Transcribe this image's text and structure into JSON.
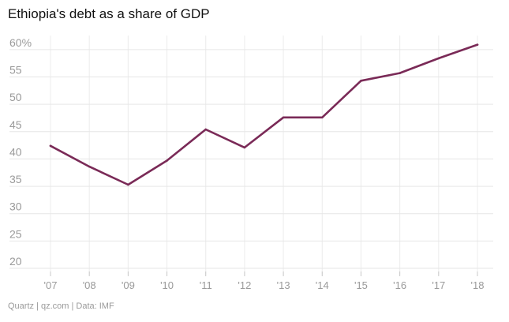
{
  "title": "Ethiopia's debt as a share of GDP",
  "footer": "Quartz | qz.com | Data: IMF",
  "chart_data": {
    "type": "line",
    "title": "Ethiopia's debt as a share of GDP",
    "xlabel": "",
    "ylabel": "",
    "categories": [
      "'07",
      "'08",
      "'09",
      "'10",
      "'11",
      "'12",
      "'13",
      "'14",
      "'15",
      "'16",
      "'17",
      "'18"
    ],
    "series": [
      {
        "values": [
          42.4,
          38.6,
          35.3,
          39.7,
          45.4,
          42.1,
          47.6,
          47.6,
          54.3,
          55.7,
          58.4,
          60.9
        ],
        "color": "#7a2a57"
      }
    ],
    "ylim": [
      20,
      62
    ],
    "yticks": [
      20,
      25,
      30,
      35,
      40,
      45,
      50,
      55,
      60
    ],
    "ytick_labels": [
      "20",
      "25",
      "30",
      "35",
      "40",
      "45",
      "50",
      "55",
      "60%"
    ],
    "grid": true,
    "legend": "none"
  }
}
